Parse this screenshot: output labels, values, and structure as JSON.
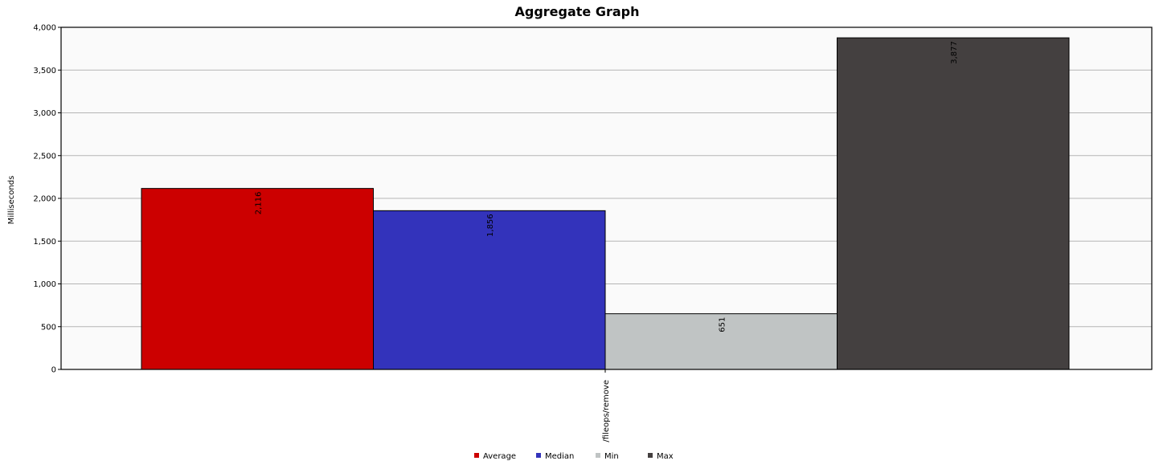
{
  "chart_data": {
    "type": "bar",
    "title": "Aggregate Graph",
    "xlabel": "",
    "ylabel": "Milliseconds",
    "categories": [
      "/fileops/remove"
    ],
    "series": [
      {
        "name": "Average",
        "values": [
          2116
        ],
        "label": "2,116",
        "color": "#cc0000"
      },
      {
        "name": "Median",
        "values": [
          1856
        ],
        "label": "1,856",
        "color": "#3333bb"
      },
      {
        "name": "Min",
        "values": [
          651
        ],
        "label": "651",
        "color": "#c0c4c4"
      },
      {
        "name": "Max",
        "values": [
          3877
        ],
        "label": "3,877",
        "color": "#444040"
      }
    ],
    "ylim": [
      0,
      4000
    ],
    "yticks": [
      "0",
      "500",
      "1,000",
      "1,500",
      "2,000",
      "2,500",
      "3,000",
      "3,500",
      "4,000"
    ],
    "grid": true,
    "legend_position": "bottom-center"
  }
}
